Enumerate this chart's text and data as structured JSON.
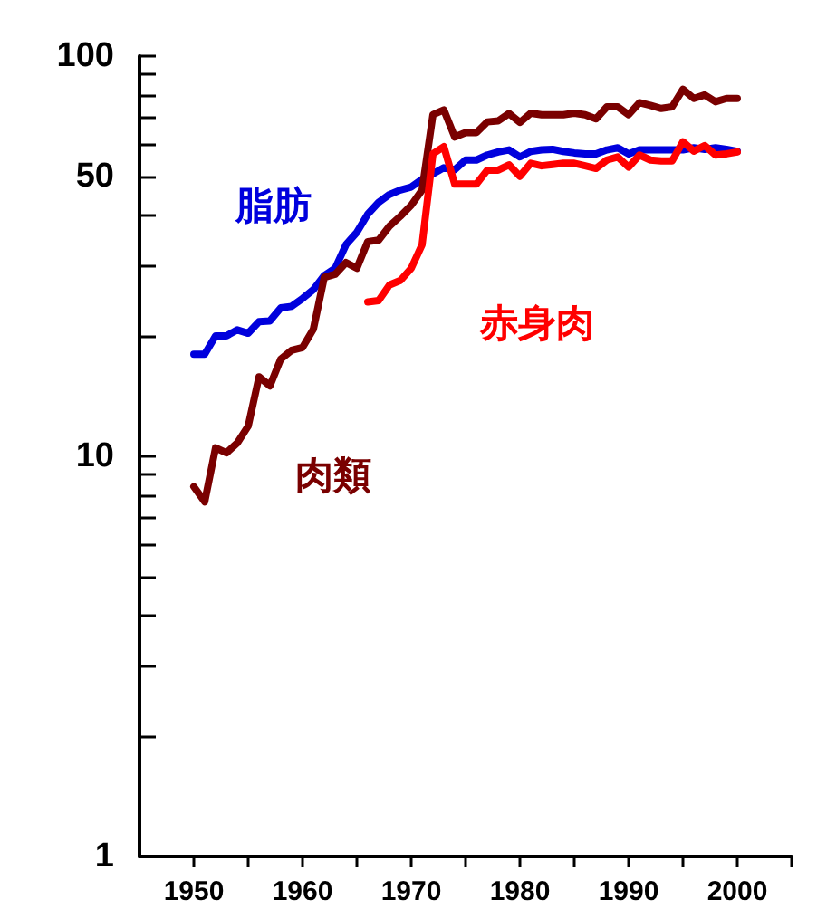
{
  "chart_data": {
    "type": "line",
    "log": "y",
    "grid": false,
    "legend": false,
    "marker": "none",
    "line_style": "solid",
    "x": [
      1950,
      1951,
      1952,
      1953,
      1954,
      1955,
      1956,
      1957,
      1958,
      1959,
      1960,
      1961,
      1962,
      1963,
      1964,
      1965,
      1966,
      1967,
      1968,
      1969,
      1970,
      1971,
      1972,
      1973,
      1974,
      1975,
      1976,
      1977,
      1978,
      1979,
      1980,
      1981,
      1982,
      1983,
      1984,
      1985,
      1986,
      1987,
      1988,
      1989,
      1990,
      1991,
      1992,
      1993,
      1994,
      1995,
      1996,
      1997,
      1998,
      1999,
      2000
    ],
    "xlim": [
      1945,
      2005
    ],
    "xticks": [
      1950,
      {
        "value": 1955,
        "label": null
      },
      1960,
      {
        "value": 1965,
        "label": null
      },
      1970,
      {
        "value": 1975,
        "label": null
      },
      1980,
      {
        "value": 1985,
        "label": null
      },
      1990,
      {
        "value": 1995,
        "label": null
      },
      2000,
      {
        "value": 2005,
        "label": null
      }
    ],
    "ylim": [
      1,
      100
    ],
    "yticks": [
      1,
      {
        "value": 2,
        "label": null
      },
      {
        "value": 3,
        "label": null
      },
      {
        "value": 4,
        "label": null
      },
      {
        "value": 5,
        "label": null
      },
      {
        "value": 6,
        "label": null
      },
      {
        "value": 7,
        "label": null
      },
      {
        "value": 8,
        "label": null
      },
      {
        "value": 9,
        "label": null
      },
      10,
      {
        "value": 20,
        "label": null
      },
      {
        "value": 30,
        "label": null
      },
      {
        "value": 40,
        "label": null
      },
      50,
      {
        "value": 60,
        "label": null
      },
      {
        "value": 70,
        "label": null
      },
      {
        "value": 80,
        "label": null
      },
      {
        "value": 90,
        "label": null
      },
      100
    ],
    "series": [
      {
        "name": "脂肪",
        "color": "#0000dd",
        "values": [
          18,
          18,
          20,
          20,
          20.7,
          20.3,
          21.7,
          21.8,
          23.5,
          23.7,
          24.8,
          26.1,
          28.3,
          29.5,
          33.8,
          36.3,
          40.3,
          43.1,
          45.1,
          46.3,
          47.1,
          49.2,
          50.8,
          52.6,
          52,
          55,
          55,
          56.6,
          57.6,
          58.3,
          56,
          57.8,
          58.3,
          58.5,
          57.8,
          57.3,
          57,
          57,
          58.3,
          59,
          57,
          58.3,
          58.3,
          58.3,
          58.3,
          58.3,
          59,
          58.5,
          59,
          58.5,
          57.8
        ]
      },
      {
        "name": "肉類",
        "color": "#7a0000",
        "values": [
          8.4,
          7.7,
          10.5,
          10.2,
          10.8,
          11.9,
          15.8,
          15,
          17.5,
          18.4,
          18.7,
          20.8,
          28,
          28.5,
          30.5,
          29.5,
          34.4,
          34.7,
          37.6,
          39.8,
          42.4,
          46.3,
          71.4,
          73.4,
          62.8,
          64.4,
          64.4,
          68.5,
          68.9,
          71.9,
          68.3,
          72,
          71.4,
          71.4,
          71.4,
          72,
          71.4,
          69.7,
          74.7,
          74.7,
          71.4,
          76.5,
          75.3,
          74,
          74.7,
          82.6,
          78.4,
          80,
          76.9,
          78.4,
          78.4
        ]
      },
      {
        "name": "赤身肉",
        "color": "#ff0000",
        "values": [
          null,
          null,
          null,
          null,
          null,
          null,
          null,
          null,
          null,
          null,
          null,
          null,
          null,
          null,
          null,
          null,
          24.3,
          24.5,
          26.8,
          27.5,
          29.5,
          33.8,
          57,
          59.4,
          47.9,
          47.9,
          47.9,
          51.9,
          51.9,
          53.5,
          50.1,
          54,
          53.2,
          53.6,
          54,
          54,
          53.2,
          52.4,
          55,
          56,
          52.8,
          56.6,
          55,
          54.7,
          54.7,
          61.1,
          57.9,
          59.8,
          56.6,
          57,
          57.6
        ]
      }
    ]
  }
}
